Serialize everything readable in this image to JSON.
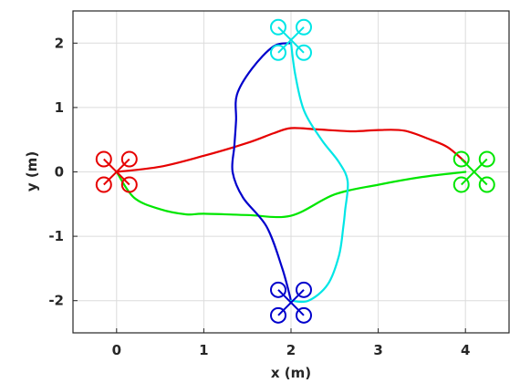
{
  "chart_data": {
    "type": "line",
    "xlabel": "x (m)",
    "ylabel": "y (m)",
    "xlim": [
      -0.5,
      4.5
    ],
    "ylim": [
      -2.5,
      2.5
    ],
    "xticks": [
      0,
      1,
      2,
      3,
      4
    ],
    "yticks": [
      -2,
      -1,
      0,
      1,
      2
    ],
    "xtick_labels": [
      "0",
      "1",
      "2",
      "3",
      "4"
    ],
    "ytick_labels": [
      "-2",
      "-1",
      "0",
      "1",
      "2"
    ],
    "grid": true,
    "series": [
      {
        "color": "#e60000",
        "x": [
          0.0,
          0.5,
          1.0,
          1.5,
          1.8,
          2.0,
          2.3,
          2.7,
          3.0,
          3.3,
          3.6,
          3.8,
          4.0
        ],
        "y": [
          0.0,
          0.08,
          0.25,
          0.45,
          0.6,
          0.68,
          0.66,
          0.63,
          0.65,
          0.64,
          0.5,
          0.38,
          0.15
        ]
      },
      {
        "color": "#00e600",
        "x": [
          0.0,
          0.2,
          0.5,
          0.8,
          1.0,
          1.5,
          2.0,
          2.5,
          3.0,
          3.5,
          4.0
        ],
        "y": [
          0.0,
          -0.4,
          -0.58,
          -0.66,
          -0.65,
          -0.67,
          -0.68,
          -0.35,
          -0.2,
          -0.08,
          0.0
        ]
      },
      {
        "color": "#0000cc",
        "x": [
          2.0,
          1.8,
          1.55,
          1.38,
          1.37,
          1.35,
          1.33,
          1.45,
          1.72,
          1.9,
          2.0
        ],
        "y": [
          2.0,
          1.95,
          1.6,
          1.2,
          0.8,
          0.4,
          0.0,
          -0.4,
          -0.85,
          -1.5,
          -2.0
        ]
      },
      {
        "color": "#00e6e6",
        "x": [
          2.0,
          2.05,
          2.15,
          2.35,
          2.55,
          2.65,
          2.62,
          2.6,
          2.55,
          2.42,
          2.2,
          2.0
        ],
        "y": [
          2.0,
          1.5,
          0.95,
          0.5,
          0.15,
          -0.15,
          -0.6,
          -0.85,
          -1.3,
          -1.75,
          -2.0,
          -2.0
        ]
      }
    ],
    "markers": [
      {
        "name": "quad-red",
        "x": 0,
        "y": 0,
        "color": "#e60000"
      },
      {
        "name": "quad-green",
        "x": 4.1,
        "y": 0,
        "color": "#00e600"
      },
      {
        "name": "quad-cyan",
        "x": 2.0,
        "y": 2.05,
        "color": "#00e6e6"
      },
      {
        "name": "quad-blue",
        "x": 2.0,
        "y": -2.03,
        "color": "#0000cc"
      }
    ]
  }
}
